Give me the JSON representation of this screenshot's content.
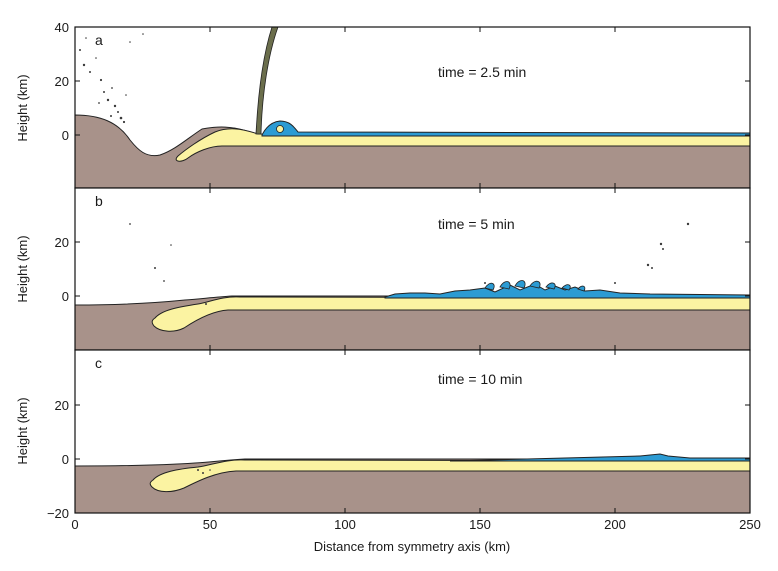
{
  "figure": {
    "xlabel": "Distance from symmetry axis (km)",
    "ylabel": "Height (km)",
    "x_ticks": [
      "0",
      "50",
      "100",
      "150",
      "200",
      "250"
    ]
  },
  "colors": {
    "rock": "#a8928a",
    "sediment": "#fbf3a2",
    "water": "#2c9bd3",
    "outline": "#222222",
    "plume": "#6b6e4c"
  },
  "panels": [
    {
      "letter": "a",
      "time": "time = 2.5 min",
      "y_ticks": [
        "40",
        "20",
        "0"
      ]
    },
    {
      "letter": "b",
      "time": "time = 5 min",
      "y_ticks": [
        "20",
        "0"
      ]
    },
    {
      "letter": "c",
      "time": "time = 10 min",
      "y_ticks": [
        "20",
        "0",
        "−20"
      ]
    }
  ],
  "chart_data": {
    "type": "area",
    "title": "",
    "xlabel": "Distance from symmetry axis (km)",
    "ylabel": "Height (km)",
    "xlim": [
      0,
      250
    ],
    "panels": [
      {
        "letter": "a",
        "time_min": 2.5,
        "ylim": [
          -20,
          40
        ],
        "layers": [
          {
            "name": "rock",
            "top": [
              [
                0,
                7.5
              ],
              [
                10,
                7
              ],
              [
                17,
                4.5
              ],
              [
                22,
                0
              ],
              [
                28,
                -6
              ],
              [
                30,
                -7.5
              ],
              [
                33,
                -8
              ],
              [
                38,
                -6.5
              ],
              [
                45,
                -3
              ],
              [
                52,
                2
              ],
              [
                58,
                2.5
              ],
              [
                65,
                1
              ],
              [
                68,
                0
              ],
              [
                250,
                0
              ]
            ]
          },
          {
            "name": "sediment",
            "x_range": [
              37,
              250
            ],
            "top_km": -0.8,
            "bottom_km": -4.2
          },
          {
            "name": "water",
            "x_range": [
              68,
              250
            ],
            "top_km": 0,
            "bottom_km": -0.8,
            "bulge": {
              "x": 77,
              "height_km": 4.5
            }
          }
        ],
        "plume": {
          "x_base_km": 68,
          "top_km": 40
        }
      },
      {
        "letter": "b",
        "time_min": 5,
        "ylim": [
          -20,
          40
        ],
        "layers": [
          {
            "name": "rock",
            "top": [
              [
                0,
                -3.5
              ],
              [
                15,
                -3.2
              ],
              [
                30,
                -2
              ],
              [
                40,
                -1.5
              ],
              [
                50,
                -0.5
              ],
              [
                55,
                0
              ],
              [
                250,
                0
              ]
            ]
          },
          {
            "name": "sediment",
            "x_range": [
              28,
              250
            ],
            "top_km": -0.8,
            "bottom_km": -4.2
          },
          {
            "name": "water",
            "x_range": [
              115,
              250
            ],
            "top_km": 0,
            "bottom_km": -0.8,
            "crests_km": [
              [
                150,
                5
              ],
              [
                215,
                1
              ]
            ]
          }
        ]
      },
      {
        "letter": "c",
        "time_min": 10,
        "ylim": [
          -20,
          40
        ],
        "layers": [
          {
            "name": "rock",
            "top": [
              [
                0,
                -2.5
              ],
              [
                20,
                -2.5
              ],
              [
                40,
                -1.8
              ],
              [
                50,
                -1
              ],
              [
                55,
                0
              ],
              [
                250,
                0
              ]
            ]
          },
          {
            "name": "sediment",
            "x_range": [
              28,
              250
            ],
            "top_km": -0.8,
            "bottom_km": -4.2
          },
          {
            "name": "water",
            "x_range": [
              140,
              250
            ],
            "top_km": 0.8,
            "bottom_km": -0.8,
            "crests_km": [
              [
                218,
                1.8
              ]
            ]
          }
        ]
      }
    ]
  }
}
